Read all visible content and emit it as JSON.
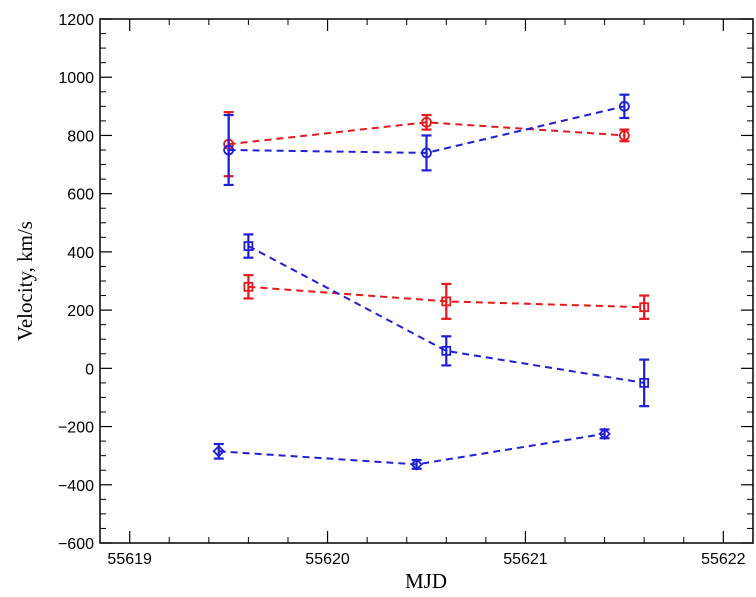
{
  "chart_data": {
    "type": "scatter",
    "title": "",
    "xlabel": "MJD",
    "ylabel": "Velocity, km/s",
    "xlim": [
      55618.85,
      55622.15
    ],
    "ylim": [
      -600,
      1200
    ],
    "xticks": [
      55619,
      55620,
      55621,
      55622
    ],
    "yticks": [
      -600,
      -400,
      -200,
      0,
      200,
      400,
      600,
      800,
      1000,
      1200
    ],
    "grid": false,
    "legend": "none",
    "series": [
      {
        "color": "#e41a1c",
        "marker": "circle",
        "x": [
          55619.5,
          55620.5,
          55621.5
        ],
        "y": [
          770,
          845,
          800
        ],
        "err": [
          110,
          25,
          20
        ]
      },
      {
        "color": "#1f1fd6",
        "marker": "circle",
        "x": [
          55619.5,
          55620.5,
          55621.5
        ],
        "y": [
          750,
          740,
          900
        ],
        "err": [
          120,
          60,
          40
        ]
      },
      {
        "color": "#e41a1c",
        "marker": "square",
        "x": [
          55619.6,
          55620.6,
          55621.6
        ],
        "y": [
          280,
          230,
          210
        ],
        "err": [
          40,
          60,
          40
        ]
      },
      {
        "color": "#1f1fd6",
        "marker": "square",
        "x": [
          55619.6,
          55620.6,
          55621.6
        ],
        "y": [
          420,
          60,
          -50
        ],
        "err": [
          40,
          50,
          80
        ]
      },
      {
        "color": "#1f1fd6",
        "marker": "diamond",
        "x": [
          55619.45,
          55620.45,
          55621.4
        ],
        "y": [
          -285,
          -330,
          -225
        ],
        "err": [
          25,
          15,
          15
        ]
      }
    ]
  }
}
